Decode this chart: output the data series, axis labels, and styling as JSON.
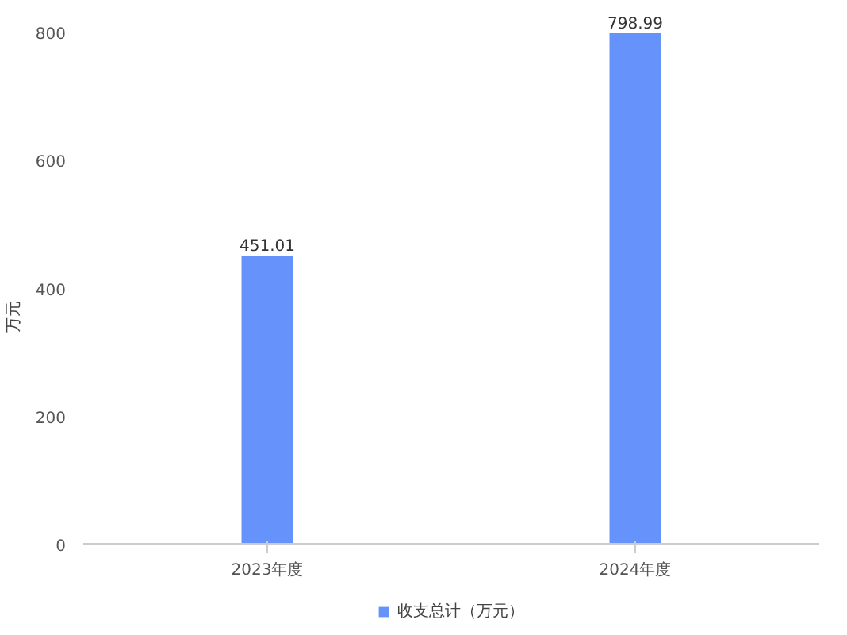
{
  "chart_data": {
    "type": "bar",
    "ylabel": "万元",
    "categories": [
      "2023年度",
      "2024年度"
    ],
    "series": [
      {
        "name": "收支总计（万元）",
        "color": "#6592fb",
        "values": [
          451.01,
          798.99
        ]
      }
    ],
    "ylim": [
      0,
      800
    ],
    "yticks": [
      0,
      200,
      400,
      600,
      800
    ],
    "grid": false,
    "legend": "bottom",
    "data_labels": true
  }
}
